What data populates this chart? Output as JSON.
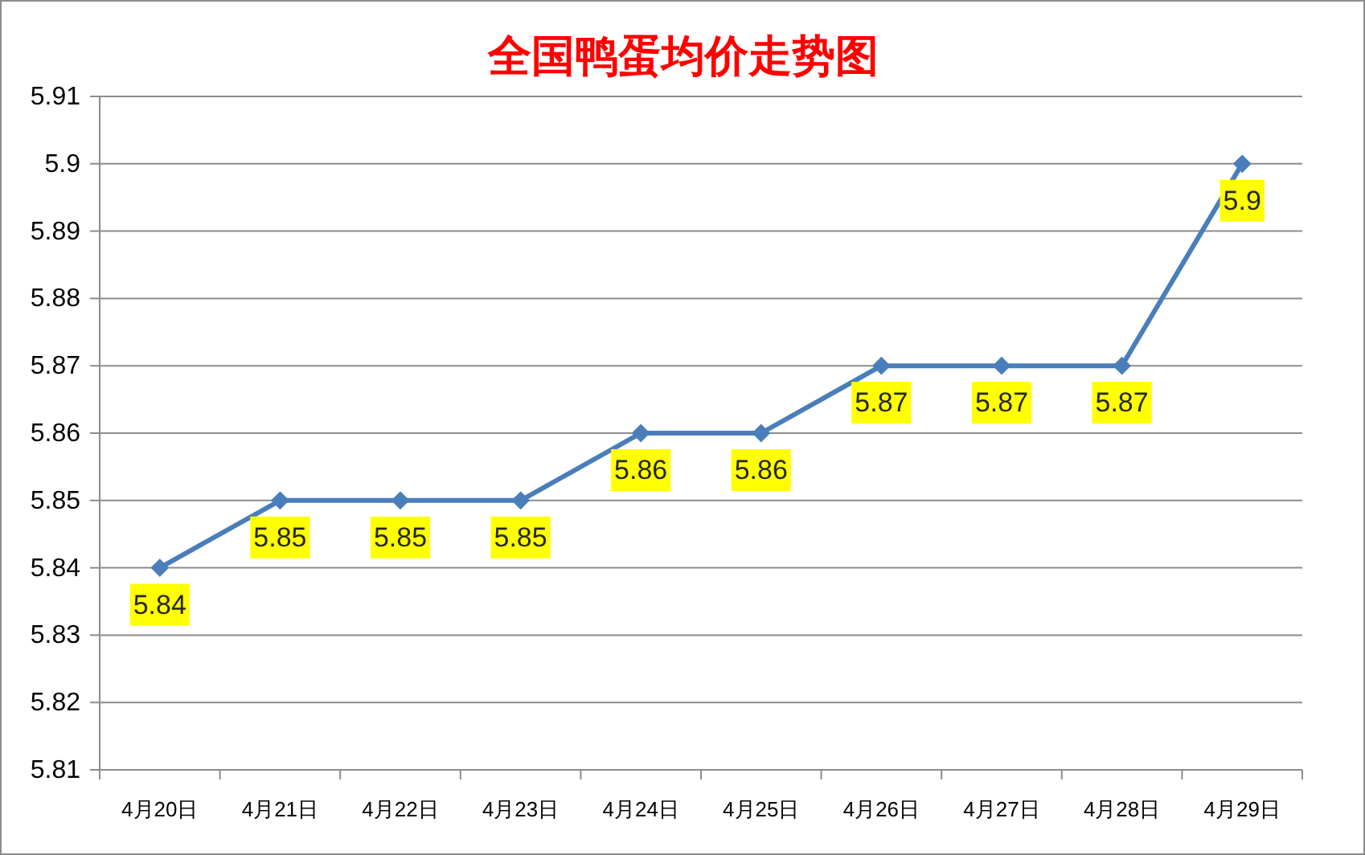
{
  "chart_data": {
    "type": "line",
    "title": "全国鸭蛋均价走势图",
    "categories": [
      "4月20日",
      "4月21日",
      "4月22日",
      "4月23日",
      "4月24日",
      "4月25日",
      "4月26日",
      "4月27日",
      "4月28日",
      "4月29日"
    ],
    "series": [
      {
        "color": "#4a7ebb",
        "values": [
          5.84,
          5.85,
          5.85,
          5.85,
          5.86,
          5.86,
          5.87,
          5.87,
          5.87,
          5.9
        ]
      }
    ],
    "ylim": [
      5.81,
      5.91
    ],
    "yticks": [
      5.81,
      5.82,
      5.83,
      5.84,
      5.85,
      5.86,
      5.87,
      5.88,
      5.89,
      5.9,
      5.91
    ],
    "grid": "y",
    "marker": "diamond",
    "line_style": "solid",
    "data_labels": true
  }
}
